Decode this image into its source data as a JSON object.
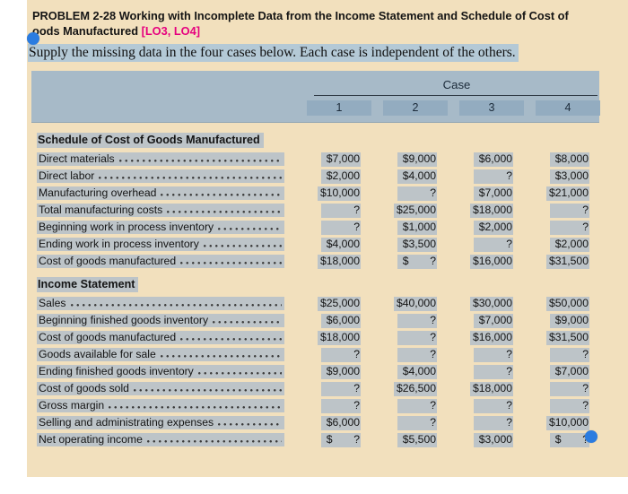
{
  "header": {
    "title_line1": "PROBLEM 2-28 Working with Incomplete Data from the Income Statement and Schedule of Cost of",
    "title_line2": "oods Manufactured",
    "lo_tag": "[LO3, LO4]",
    "instruction": "Supply the missing data in the four cases below. Each case is independent of the others."
  },
  "table": {
    "case_header": "Case",
    "columns": [
      "1",
      "2",
      "3",
      "4"
    ],
    "sections": [
      {
        "title": "Schedule of Cost of Goods Manufactured",
        "rows": [
          {
            "label": "Direct materials",
            "values": [
              "$7,000",
              "$9,000",
              "$6,000",
              "$8,000"
            ]
          },
          {
            "label": "Direct labor",
            "values": [
              "$2,000",
              "$4,000",
              "?",
              "$3,000"
            ]
          },
          {
            "label": "Manufacturing overhead",
            "values": [
              "$10,000",
              "?",
              "$7,000",
              "$21,000"
            ]
          },
          {
            "label": "Total manufacturing costs",
            "values": [
              "?",
              "$25,000",
              "$18,000",
              "?"
            ]
          },
          {
            "label": "Beginning work in process inventory",
            "values": [
              "?",
              "$1,000",
              "$2,000",
              "?"
            ]
          },
          {
            "label": "Ending work in process inventory",
            "values": [
              "$4,000",
              "$3,500",
              "?",
              "$2,000"
            ]
          },
          {
            "label": "Cost of goods manufactured",
            "values": [
              "$18,000",
              "$       ?",
              "$16,000",
              "$31,500"
            ]
          }
        ]
      },
      {
        "title": "Income Statement",
        "rows": [
          {
            "label": "Sales",
            "values": [
              "$25,000",
              "$40,000",
              "$30,000",
              "$50,000"
            ]
          },
          {
            "label": "Beginning finished goods inventory",
            "values": [
              "$6,000",
              "?",
              "$7,000",
              "$9,000"
            ]
          },
          {
            "label": "Cost of goods manufactured",
            "values": [
              "$18,000",
              "?",
              "$16,000",
              "$31,500"
            ]
          },
          {
            "label": "Goods available for sale",
            "values": [
              "?",
              "?",
              "?",
              "?"
            ]
          },
          {
            "label": "Ending finished goods inventory",
            "values": [
              "$9,000",
              "$4,000",
              "?",
              "$7,000"
            ]
          },
          {
            "label": "Cost of goods sold",
            "values": [
              "?",
              "$26,500",
              "$18,000",
              "?"
            ]
          },
          {
            "label": "Gross margin",
            "values": [
              "?",
              "?",
              "?",
              "?"
            ]
          },
          {
            "label": "Selling and administrating expenses",
            "values": [
              "$6,000",
              "?",
              "?",
              "$10,000"
            ]
          },
          {
            "label": "Net operating income",
            "values": [
              "$       ?",
              "$5,500",
              "$3,000",
              "$       ?"
            ]
          }
        ]
      }
    ]
  },
  "colors": {
    "page_bg": "#f2e0bd",
    "header_band": "#a7bac8",
    "number_box": "#93acc0",
    "highlight_gray": "#bdc4c8",
    "highlight_blue": "#b4c9d6",
    "lo_tag_color": "#e6007e",
    "selection_handle": "#2b7ce0"
  }
}
